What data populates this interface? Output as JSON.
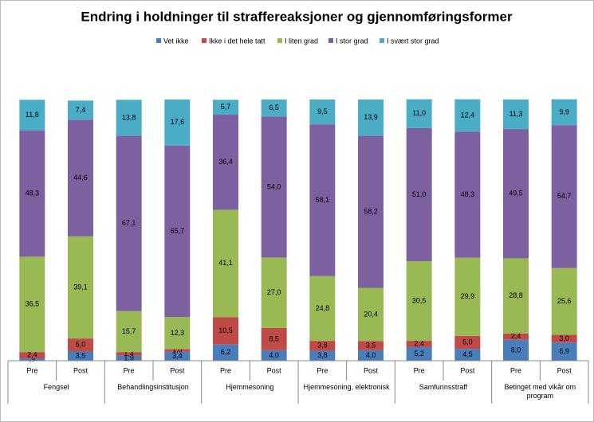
{
  "chart_data": {
    "type": "stacked-bar",
    "title": "Endring i holdninger til straffereaksjoner og gjennomføringsformer",
    "groups": [
      "Fengsel",
      "Behandlingsinstitusjon",
      "Hjemmesoning",
      "Hjemmesoning,  elektronisk",
      "Samfunnsstraff",
      "Betinget med vikår om program"
    ],
    "categories": [
      "Pre",
      "Post",
      "Pre",
      "Post",
      "Pre",
      "Post",
      "Pre",
      "Post",
      "Pre",
      "Post",
      "Pre",
      "Post"
    ],
    "ylim": [
      0,
      100
    ],
    "legend": "top",
    "series": [
      {
        "name": "Vet ikke",
        "color": "#4a7ebb",
        "values": [
          0.9,
          3.5,
          1.9,
          3.4,
          6.2,
          4.0,
          3.8,
          4.0,
          5.2,
          4.5,
          8.0,
          6.9
        ],
        "value_labels": [
          ",9",
          "3,5",
          "1,9",
          "3,4",
          "6,2",
          "4,0",
          "3,8",
          "4,0",
          "5,2",
          "4,5",
          "8,0",
          "6,9"
        ]
      },
      {
        "name": "Ikke i det hele tatt",
        "color": "#be4b48",
        "values": [
          2.4,
          5.0,
          1.4,
          1.0,
          10.5,
          8.5,
          3.8,
          3.5,
          2.4,
          5.0,
          2.4,
          3.0
        ],
        "value_labels": [
          "2,4",
          "5,0",
          "1,4",
          "1,0",
          "10,5",
          "8,5",
          "3,8",
          "3,5",
          "2,4",
          "5,0",
          "2,4",
          "3,0"
        ]
      },
      {
        "name": "I liten grad",
        "color": "#98b954",
        "values": [
          36.5,
          39.1,
          15.7,
          12.3,
          41.1,
          27.0,
          24.8,
          20.4,
          30.5,
          29.9,
          28.8,
          25.6
        ],
        "value_labels": [
          "36,5",
          "39,1",
          "15,7",
          "12,3",
          "41,1",
          "27,0",
          "24,8",
          "20,4",
          "30,5",
          "29,9",
          "28,8",
          "25,6"
        ]
      },
      {
        "name": "I stor grad",
        "color": "#7d60a0",
        "values": [
          48.3,
          44.6,
          67.1,
          65.7,
          36.4,
          54.0,
          58.1,
          58.2,
          51.0,
          48.3,
          49.5,
          54.7
        ],
        "value_labels": [
          "48,3",
          "44,6",
          "67,1",
          "65,7",
          "36,4",
          "54,0",
          "58,1",
          "58,2",
          "51,0",
          "48,3",
          "49,5",
          "54,7"
        ]
      },
      {
        "name": "I svært stor grad",
        "color": "#4bacc6",
        "values": [
          11.8,
          7.4,
          13.8,
          17.6,
          5.7,
          6.5,
          9.5,
          13.9,
          11.0,
          12.4,
          11.3,
          9.9
        ],
        "value_labels": [
          "11,8",
          "7,4",
          "13,8",
          "17,6",
          "5,7",
          "6,5",
          "9,5",
          "13,9",
          "11,0",
          "12,4",
          "11,3",
          "9,9"
        ]
      }
    ]
  }
}
